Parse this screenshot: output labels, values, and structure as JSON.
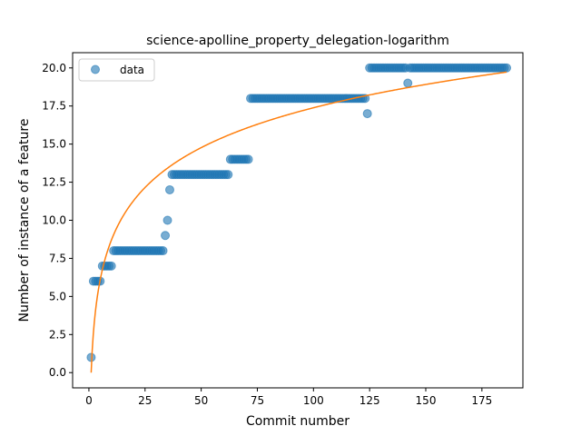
{
  "chart_data": {
    "type": "scatter",
    "title": "science-apolline_property_delegation-logarithm",
    "xlabel": "Commit number",
    "ylabel": "Number of instance of a feature",
    "xlim": [
      -7.25,
      193.25
    ],
    "ylim": [
      -1,
      21
    ],
    "xticks": [
      0,
      25,
      50,
      75,
      100,
      125,
      150,
      175
    ],
    "xtick_labels": [
      "0",
      "25",
      "50",
      "75",
      "100",
      "125",
      "150",
      "175"
    ],
    "yticks": [
      0,
      2.5,
      5,
      7.5,
      10,
      12.5,
      15,
      17.5,
      20
    ],
    "ytick_labels": [
      "0.0",
      "2.5",
      "5.0",
      "7.5",
      "10.0",
      "12.5",
      "15.0",
      "17.5",
      "20.0"
    ],
    "grid": false,
    "legend": {
      "placement": "top-left",
      "entries": [
        "data"
      ]
    },
    "colors": {
      "points": "#1f77b4",
      "fit": "#ff7f0e"
    },
    "series": [
      {
        "name": "data",
        "kind": "scatter",
        "segments": [
          {
            "x_start": 1,
            "x_end": 1,
            "y": 1
          },
          {
            "x_start": 2,
            "x_end": 5,
            "y": 6
          },
          {
            "x_start": 6,
            "x_end": 10,
            "y": 7
          },
          {
            "x_start": 11,
            "x_end": 33,
            "y": 8
          },
          {
            "x_start": 34,
            "x_end": 34,
            "y": 9
          },
          {
            "x_start": 35,
            "x_end": 35,
            "y": 10
          },
          {
            "x_start": 36,
            "x_end": 36,
            "y": 12
          },
          {
            "x_start": 37,
            "x_end": 62,
            "y": 13
          },
          {
            "x_start": 63,
            "x_end": 71,
            "y": 14
          },
          {
            "x_start": 72,
            "x_end": 123,
            "y": 18
          },
          {
            "x_start": 124,
            "x_end": 124,
            "y": 17
          },
          {
            "x_start": 125,
            "x_end": 141,
            "y": 20
          },
          {
            "x_start": 142,
            "x_end": 142,
            "y": 19
          },
          {
            "x_start": 143,
            "x_end": 186,
            "y": 20
          }
        ]
      },
      {
        "kind": "line",
        "model": "logarithmic",
        "a": 3.775,
        "b": 0,
        "x_range": [
          1,
          186
        ]
      }
    ]
  }
}
